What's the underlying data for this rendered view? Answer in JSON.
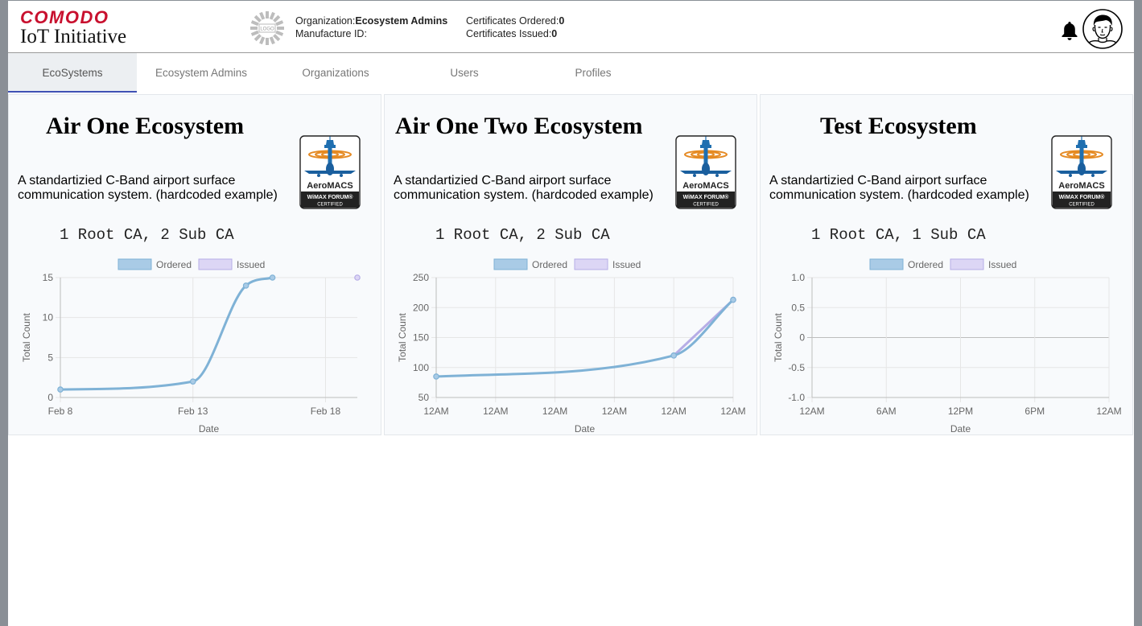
{
  "brand": {
    "top": "COMODO",
    "bottom": "IoT Initiative"
  },
  "org_logo_text": "LOGO",
  "header": {
    "org_label": "Organization:",
    "org_value": "Ecosystem Admins",
    "mfr_label": "Manufacture ID:",
    "mfr_value": "",
    "ordered_label": "Certificates Ordered:",
    "ordered_value": "0",
    "issued_label": "Certificates Issued:",
    "issued_value": "0",
    "icons": [
      "bell-icon",
      "user-avatar-icon"
    ]
  },
  "tabs": [
    {
      "label": "EcoSystems",
      "active": true
    },
    {
      "label": "Ecosystem Admins",
      "active": false
    },
    {
      "label": "Organizations",
      "active": false
    },
    {
      "label": "Users",
      "active": false
    },
    {
      "label": "Profiles",
      "active": false
    }
  ],
  "badge": {
    "line1": "AeroMACS",
    "line2": "WiMAX FORUM®",
    "line3": "CERTIFIED"
  },
  "colors": {
    "ordered": "#7fb2d6",
    "ordered_fill": "#a9cbe6",
    "issued": "#b6ade6",
    "issued_fill": "#dcd6f5",
    "tab_accent": "#3f51b5",
    "brand_red": "#c8102e"
  },
  "cards": [
    {
      "title": "Air One Ecosystem",
      "description": "A standartizied C-Band airport surface communication system. (hardcoded example)",
      "summary": "1 Root CA, 2 Sub CA"
    },
    {
      "title": "Air One Two Ecosystem",
      "description": "A standartizied C-Band airport surface communication system. (hardcoded example)",
      "summary": "1 Root CA, 2 Sub CA"
    },
    {
      "title": "Test Ecosystem",
      "description": "A standartizied C-Band airport surface communication system. (hardcoded example)",
      "summary": "1 Root CA, 1 Sub CA"
    }
  ],
  "chart_data": [
    {
      "type": "line",
      "xlabel": "Date",
      "ylabel": "Total Count",
      "legend": [
        "Ordered",
        "Issued"
      ],
      "legend_position": "top",
      "grid": true,
      "xlim": [
        8,
        19.2
      ],
      "ylim": [
        0,
        15
      ],
      "x_ticks": [
        {
          "v": 8,
          "label": "Feb 8"
        },
        {
          "v": 13,
          "label": "Feb 13"
        },
        {
          "v": 18,
          "label": "Feb 18"
        }
      ],
      "y_ticks": [
        {
          "v": 0,
          "label": "0"
        },
        {
          "v": 5,
          "label": "5"
        },
        {
          "v": 10,
          "label": "10"
        },
        {
          "v": 15,
          "label": "15"
        }
      ],
      "series": [
        {
          "name": "Ordered",
          "x": [
            8,
            13,
            15,
            16
          ],
          "y": [
            1,
            2,
            14,
            15
          ]
        },
        {
          "name": "Issued",
          "x": [
            19.2
          ],
          "y": [
            15
          ]
        }
      ]
    },
    {
      "type": "line",
      "xlabel": "Date",
      "ylabel": "Total Count",
      "legend": [
        "Ordered",
        "Issued"
      ],
      "legend_position": "top",
      "grid": true,
      "xlim": [
        0,
        5
      ],
      "ylim": [
        50,
        250
      ],
      "x_ticks": [
        {
          "v": 0,
          "label": "12AM"
        },
        {
          "v": 1,
          "label": "12AM"
        },
        {
          "v": 2,
          "label": "12AM"
        },
        {
          "v": 3,
          "label": "12AM"
        },
        {
          "v": 4,
          "label": "12AM"
        },
        {
          "v": 5,
          "label": "12AM"
        }
      ],
      "y_ticks": [
        {
          "v": 50,
          "label": "50"
        },
        {
          "v": 100,
          "label": "100"
        },
        {
          "v": 150,
          "label": "150"
        },
        {
          "v": 200,
          "label": "200"
        },
        {
          "v": 250,
          "label": "250"
        }
      ],
      "series": [
        {
          "name": "Ordered",
          "x": [
            0,
            4,
            5
          ],
          "y": [
            85,
            120,
            213
          ]
        },
        {
          "name": "Issued",
          "x": [
            4,
            5
          ],
          "y": [
            120,
            213
          ]
        }
      ]
    },
    {
      "type": "line",
      "xlabel": "Date",
      "ylabel": "Total Count",
      "legend": [
        "Ordered",
        "Issued"
      ],
      "legend_position": "top",
      "grid": true,
      "xlim": [
        0,
        4
      ],
      "ylim": [
        -1,
        1
      ],
      "x_ticks": [
        {
          "v": 0,
          "label": "12AM"
        },
        {
          "v": 1,
          "label": "6AM"
        },
        {
          "v": 2,
          "label": "12PM"
        },
        {
          "v": 3,
          "label": "6PM"
        },
        {
          "v": 4,
          "label": "12AM"
        }
      ],
      "y_ticks": [
        {
          "v": -1,
          "label": "-1.0"
        },
        {
          "v": -0.5,
          "label": "-0.5"
        },
        {
          "v": 0,
          "label": "0"
        },
        {
          "v": 0.5,
          "label": "0.5"
        },
        {
          "v": 1,
          "label": "1.0"
        }
      ],
      "series": [
        {
          "name": "Ordered",
          "x": [],
          "y": []
        },
        {
          "name": "Issued",
          "x": [],
          "y": []
        }
      ]
    }
  ]
}
